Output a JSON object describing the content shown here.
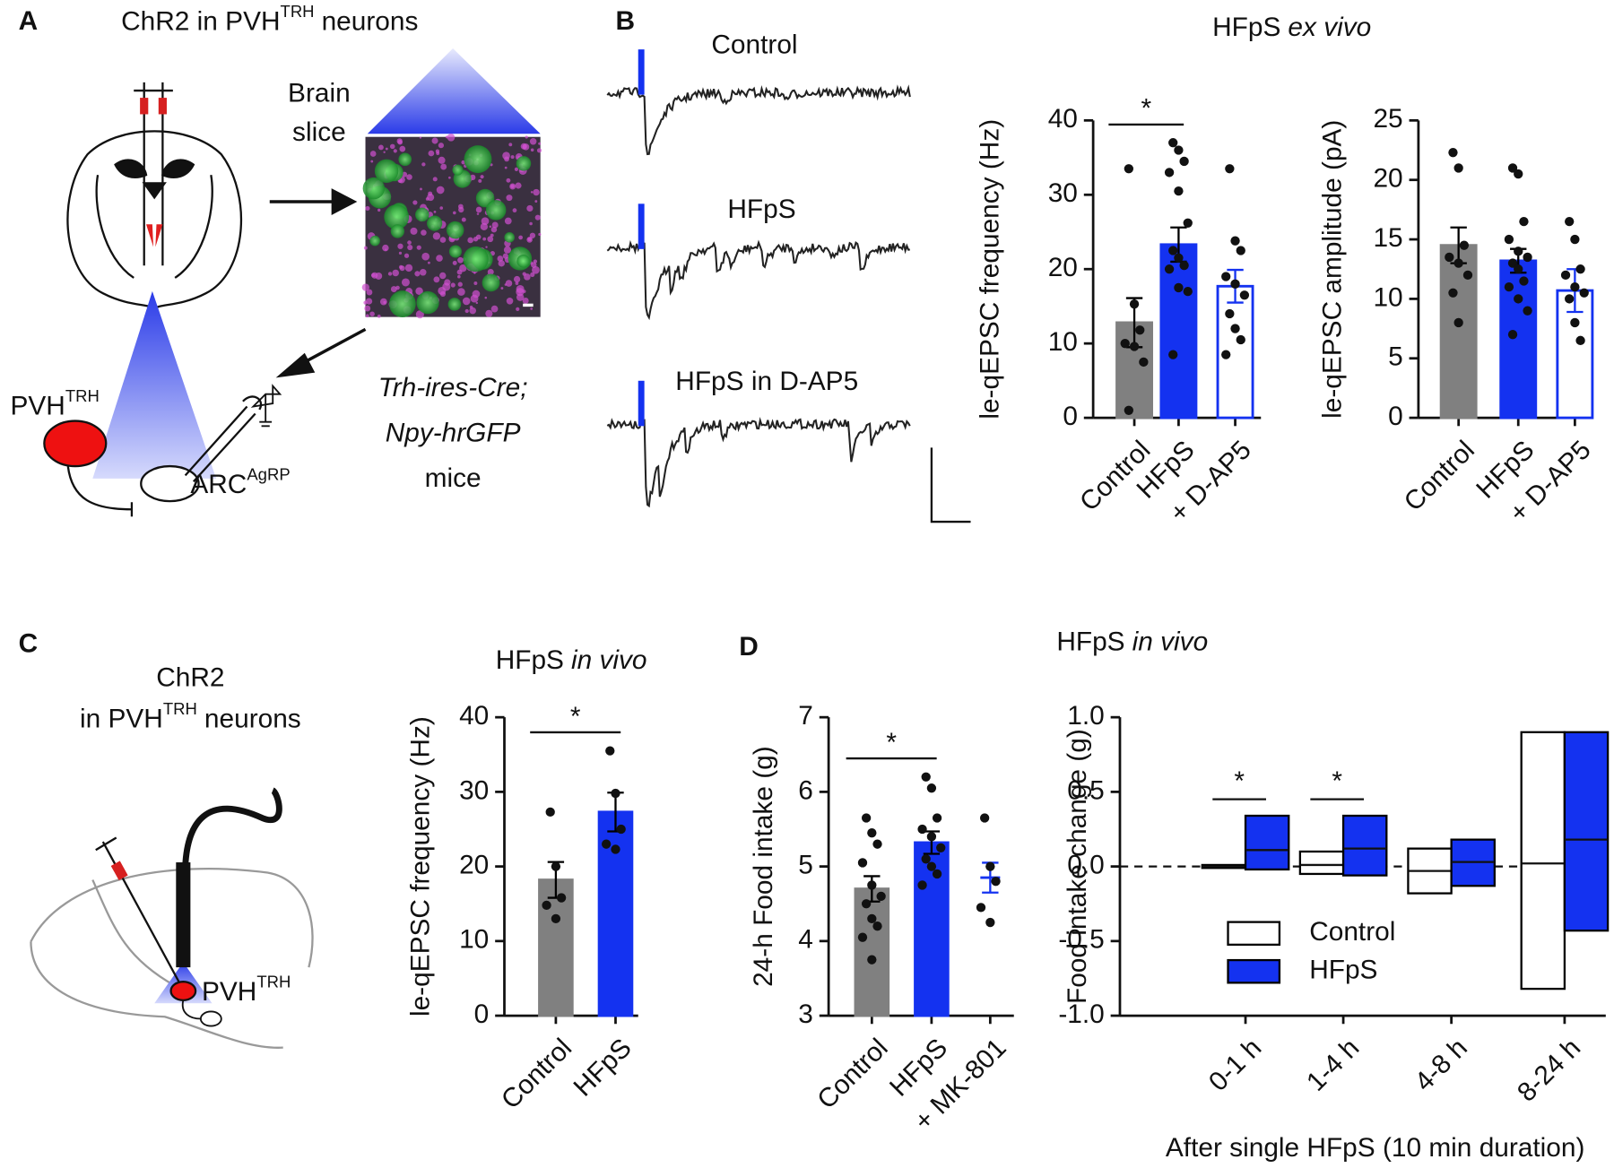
{
  "panel_labels": [
    "A",
    "B",
    "C",
    "D"
  ],
  "panel_a": {
    "title": [
      "ChR2 in PVH",
      "TRH",
      "neurons"
    ],
    "slice_label": [
      "Brain",
      "slice"
    ],
    "pvh": [
      "PVH",
      "TRH"
    ],
    "arc": [
      "ARC",
      "AgRP"
    ],
    "mice": [
      "Trh-ires-Cre;",
      "Npy-hrGFP",
      "mice"
    ]
  },
  "panel_b": {
    "heading": [
      "HFpS",
      "ex vivo"
    ],
    "traces": [
      "Control",
      "HFpS",
      "HFpS in D-AP5"
    ]
  },
  "panel_c": {
    "heading": [
      "HFpS",
      "in vivo"
    ],
    "construct": [
      "ChR2",
      "in PVH",
      "TRH",
      "neurons"
    ],
    "pvh": [
      "PVH",
      "TRH"
    ]
  },
  "panel_d": {
    "heading": [
      "HFpS",
      "in vivo"
    ]
  },
  "chart_data": [
    {
      "type": "bar",
      "ylabel": "le-qEPSC frequency (Hz)",
      "categories": [
        "Control",
        "HFpS",
        "+ D-AP5"
      ],
      "values": [
        12.8,
        23.3,
        17.7
      ],
      "errors": [
        3.3,
        2.3,
        2.2
      ],
      "colors": [
        "#808080",
        "#1432f0",
        "#ffffff"
      ],
      "edgecolors": [
        "#808080",
        "#1432f0",
        "#1432f0"
      ],
      "errorcolors": [
        "#000000",
        "#000000",
        "#1432f0"
      ],
      "points": [
        [
          33.5,
          15.3,
          11.8,
          10.0,
          9.6,
          7.5,
          1.0
        ],
        [
          37.0,
          36.0,
          34.5,
          33.0,
          30.5,
          26.2,
          22.5,
          21.5,
          20.5,
          20.0,
          17.5,
          17.0,
          8.5
        ],
        [
          33.5,
          23.8,
          22.5,
          19.0,
          18.0,
          16.5,
          14.0,
          12.0,
          10.5,
          8.5
        ]
      ],
      "ylim": [
        0,
        40
      ],
      "yticks": [
        0,
        10,
        20,
        30,
        40
      ],
      "significance": [
        {
          "pair": [
            0,
            1
          ],
          "label": "*"
        }
      ]
    },
    {
      "type": "bar",
      "ylabel": "le-qEPSC amplitude (pA)",
      "categories": [
        "Control",
        "HFpS",
        "+ D-AP5"
      ],
      "values": [
        14.5,
        13.2,
        10.7
      ],
      "errors": [
        1.5,
        1.0,
        1.8
      ],
      "colors": [
        "#808080",
        "#1432f0",
        "#ffffff"
      ],
      "edgecolors": [
        "#808080",
        "#1432f0",
        "#1432f0"
      ],
      "errorcolors": [
        "#000000",
        "#000000",
        "#1432f0"
      ],
      "points": [
        [
          22.3,
          21.0,
          14.5,
          13.5,
          13.0,
          12.0,
          10.5,
          8.0
        ],
        [
          21.0,
          20.5,
          16.5,
          15.0,
          14.0,
          13.5,
          13.0,
          12.5,
          11.5,
          11.0,
          10.0,
          9.0,
          7.0
        ],
        [
          16.5,
          15.0,
          12.5,
          12.0,
          11.0,
          10.5,
          10.0,
          8.0,
          6.5
        ]
      ],
      "ylim": [
        0,
        25
      ],
      "yticks": [
        0,
        5,
        10,
        15,
        20,
        25
      ],
      "significance": []
    },
    {
      "type": "bar",
      "ylabel": "le-qEPSC frequency (Hz)",
      "categories": [
        "Control",
        "HFpS"
      ],
      "values": [
        18.2,
        27.3
      ],
      "errors": [
        2.4,
        2.6
      ],
      "colors": [
        "#808080",
        "#1432f0"
      ],
      "edgecolors": [
        "#808080",
        "#1432f0"
      ],
      "errorcolors": [
        "#000000",
        "#000000"
      ],
      "points": [
        [
          27.3,
          20.0,
          15.8,
          14.8,
          13.0
        ],
        [
          35.5,
          29.8,
          25.0,
          23.0,
          22.3
        ]
      ],
      "ylim": [
        0,
        40
      ],
      "yticks": [
        0,
        10,
        20,
        30,
        40
      ],
      "significance": [
        {
          "pair": [
            0,
            1
          ],
          "label": "*"
        }
      ]
    },
    {
      "type": "bar",
      "ylabel": "24-h Food intake (g)",
      "categories": [
        "Control",
        "HFpS",
        "+ MK-801"
      ],
      "values": [
        4.7,
        5.32,
        4.85
      ],
      "errors": [
        0.17,
        0.15,
        0.2
      ],
      "colors": [
        "#808080",
        "#1432f0",
        "none"
      ],
      "edgecolors": [
        "#808080",
        "#1432f0",
        "#1432f0"
      ],
      "errorcolors": [
        "#000000",
        "#000000",
        "#1432f0"
      ],
      "points": [
        [
          5.65,
          5.45,
          5.3,
          5.05,
          4.75,
          4.6,
          4.5,
          4.3,
          4.2,
          4.05,
          3.75
        ],
        [
          6.2,
          6.05,
          5.65,
          5.5,
          5.4,
          5.25,
          5.1,
          5.0,
          4.9,
          4.75
        ],
        [
          5.65,
          5.0,
          4.8,
          4.45,
          4.25
        ]
      ],
      "ylim": [
        3,
        7
      ],
      "yticks": [
        3,
        4,
        5,
        6,
        7
      ],
      "significance": [
        {
          "pair": [
            0,
            1
          ],
          "label": "*"
        }
      ]
    },
    {
      "type": "floating-bar",
      "ylabel": "Food intake change (g)",
      "xlabel": "After single HFpS (10 min duration)",
      "categories": [
        "0-1 h",
        "1-4 h",
        "4-8 h",
        "8-24 h"
      ],
      "series": [
        {
          "name": "Control",
          "color": "#ffffff",
          "edgecolor": "#000000",
          "low": [
            -0.01,
            -0.05,
            -0.18,
            -0.82
          ],
          "high": [
            0.01,
            0.1,
            0.12,
            0.9
          ],
          "mean": [
            0,
            0.01,
            -0.03,
            0.02
          ]
        },
        {
          "name": "HFpS",
          "color": "#1432f0",
          "edgecolor": "#000000",
          "low": [
            -0.02,
            -0.06,
            -0.13,
            -0.43
          ],
          "high": [
            0.34,
            0.34,
            0.18,
            0.9
          ],
          "mean": [
            0.11,
            0.12,
            0.03,
            0.18
          ]
        }
      ],
      "ylim": [
        -1,
        1
      ],
      "yticks": [
        {
          "value": -1,
          "label": "-1.0"
        },
        {
          "value": -0.5,
          "label": "-0.5"
        },
        {
          "value": 0,
          "label": "0.0"
        },
        {
          "value": 0.5,
          "label": "0.5"
        },
        {
          "value": 1,
          "label": "1.0"
        }
      ],
      "refline": 0,
      "legend": "lower-left",
      "significance": [
        {
          "category": 0,
          "label": "*"
        },
        {
          "category": 1,
          "label": "*"
        }
      ]
    }
  ]
}
